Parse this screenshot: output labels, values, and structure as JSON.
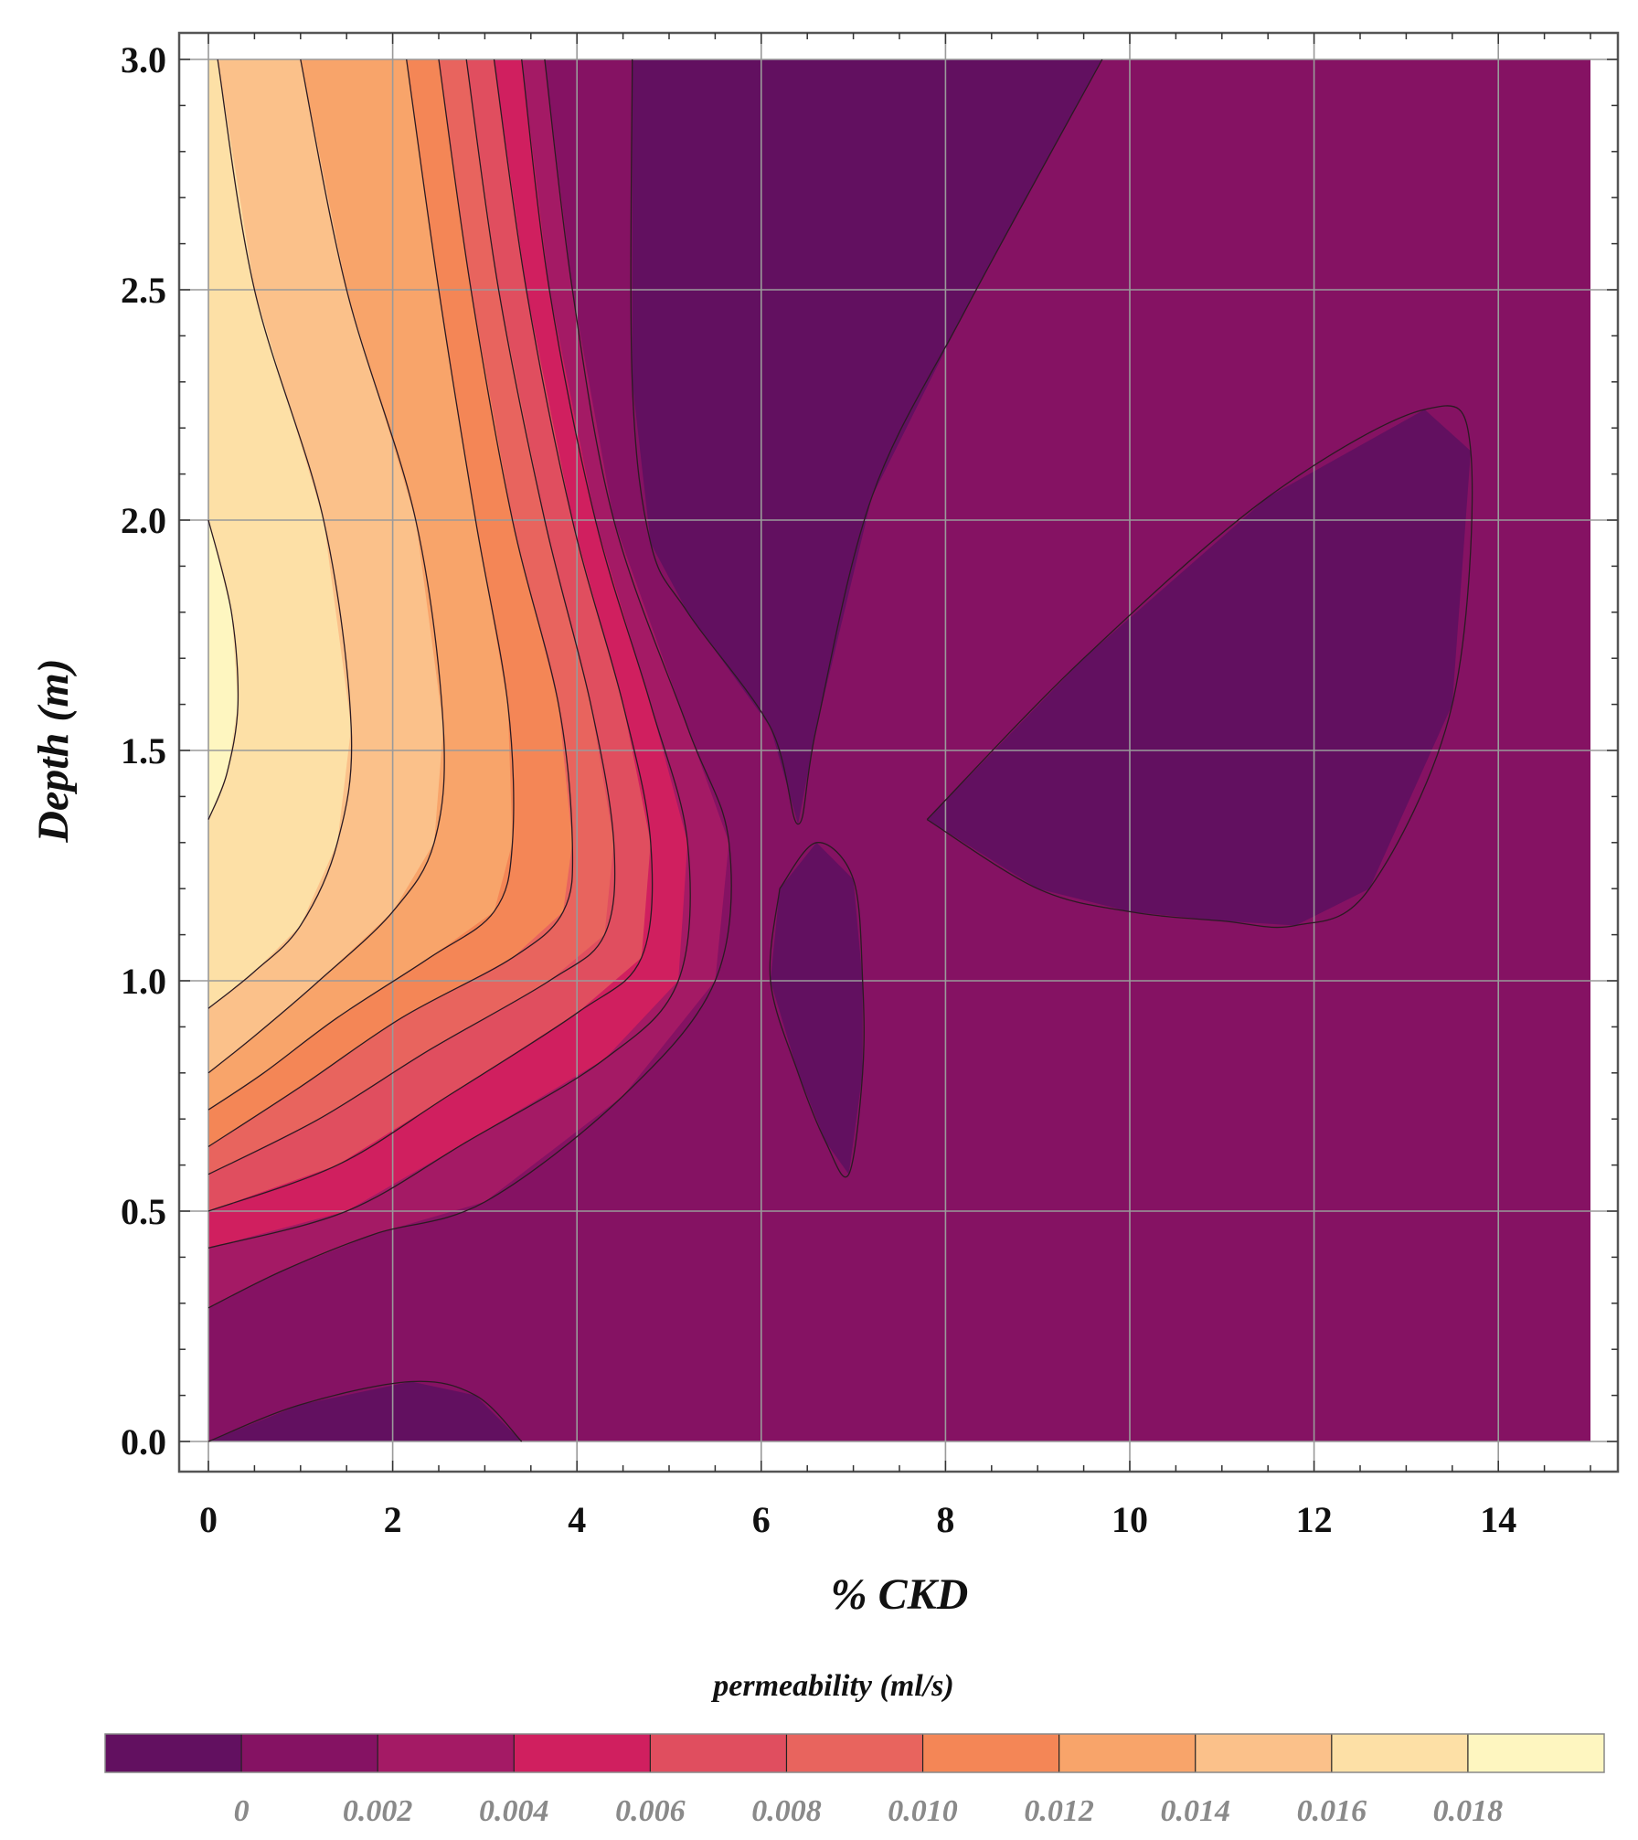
{
  "chart_data": {
    "type": "contour",
    "xlabel": "% CKD",
    "ylabel": "Depth (m)",
    "xlim": [
      0,
      15
    ],
    "ylim": [
      0,
      3
    ],
    "x_ticks": [
      "0",
      "2",
      "4",
      "6",
      "8",
      "10",
      "12",
      "14"
    ],
    "y_ticks": [
      "0.0",
      "0.5",
      "1.0",
      "1.5",
      "2.0",
      "2.5",
      "3.0"
    ],
    "grid": true,
    "colorbar": {
      "title": "permeability (ml/s)",
      "position": "bottom",
      "tick_labels": [
        "0",
        "0.002",
        "0.004",
        "0.006",
        "0.008",
        "0.010",
        "0.012",
        "0.014",
        "0.016",
        "0.018"
      ],
      "level_colors": [
        "#621060",
        "#851263",
        "#a41a65",
        "#d01f5f",
        "#e04e5f",
        "#e8645e",
        "#f48656",
        "#f8a46a",
        "#fbc18a",
        "#fde0a6",
        "#fef6c0"
      ]
    },
    "contour_lines": [
      {
        "level": "0",
        "points": [
          [
            4.6,
            3.0
          ],
          [
            4.6,
            2.3
          ],
          [
            4.8,
            1.95
          ],
          [
            5.2,
            1.8
          ],
          [
            6.1,
            1.55
          ],
          [
            6.4,
            1.34
          ],
          [
            6.6,
            1.55
          ],
          [
            7.2,
            2.05
          ],
          [
            8.2,
            2.45
          ],
          [
            9.7,
            3.0
          ]
        ]
      },
      {
        "level": "0",
        "points": [
          [
            6.2,
            1.2
          ],
          [
            6.6,
            1.3
          ],
          [
            7.0,
            1.22
          ],
          [
            7.1,
            1.0
          ],
          [
            7.1,
            0.8
          ],
          [
            6.95,
            0.58
          ],
          [
            6.7,
            0.65
          ],
          [
            6.4,
            0.8
          ],
          [
            6.1,
            1.0
          ],
          [
            6.2,
            1.2
          ]
        ]
      },
      {
        "level": "0",
        "points": [
          [
            7.8,
            1.35
          ],
          [
            9.5,
            1.7
          ],
          [
            11.5,
            2.05
          ],
          [
            13.2,
            2.24
          ],
          [
            13.7,
            2.15
          ],
          [
            13.5,
            1.6
          ],
          [
            12.6,
            1.2
          ],
          [
            11.8,
            1.12
          ],
          [
            11.0,
            1.13
          ],
          [
            10.0,
            1.15
          ],
          [
            9.0,
            1.2
          ],
          [
            7.8,
            1.35
          ]
        ]
      },
      {
        "level": "0",
        "points": [
          [
            0.0,
            0.0
          ],
          [
            1.0,
            0.08
          ],
          [
            2.2,
            0.13
          ],
          [
            2.9,
            0.1
          ],
          [
            3.4,
            0.0
          ]
        ]
      },
      {
        "level": "0.002",
        "points": [
          [
            3.65,
            3.0
          ],
          [
            3.95,
            2.5
          ],
          [
            4.4,
            2.0
          ],
          [
            5.2,
            1.55
          ],
          [
            5.65,
            1.3
          ],
          [
            5.5,
            1.0
          ],
          [
            4.5,
            0.75
          ],
          [
            3.0,
            0.52
          ],
          [
            1.8,
            0.45
          ],
          [
            0.8,
            0.37
          ],
          [
            0.0,
            0.29
          ]
        ]
      },
      {
        "level": "0.004",
        "points": [
          [
            3.4,
            3.0
          ],
          [
            3.7,
            2.5
          ],
          [
            4.2,
            2.0
          ],
          [
            4.8,
            1.6
          ],
          [
            5.2,
            1.3
          ],
          [
            5.1,
            1.0
          ],
          [
            4.3,
            0.83
          ],
          [
            2.8,
            0.65
          ],
          [
            1.5,
            0.5
          ],
          [
            0.0,
            0.42
          ]
        ]
      },
      {
        "level": "0.006",
        "points": [
          [
            3.1,
            3.0
          ],
          [
            3.45,
            2.5
          ],
          [
            3.95,
            2.0
          ],
          [
            4.5,
            1.6
          ],
          [
            4.8,
            1.3
          ],
          [
            4.7,
            1.05
          ],
          [
            4.0,
            0.93
          ],
          [
            2.6,
            0.75
          ],
          [
            1.4,
            0.6
          ],
          [
            0.0,
            0.5
          ]
        ]
      },
      {
        "level": "0.008",
        "points": [
          [
            2.8,
            3.0
          ],
          [
            3.15,
            2.5
          ],
          [
            3.65,
            2.0
          ],
          [
            4.15,
            1.6
          ],
          [
            4.4,
            1.3
          ],
          [
            4.3,
            1.1
          ],
          [
            3.7,
            1.0
          ],
          [
            2.4,
            0.85
          ],
          [
            1.2,
            0.7
          ],
          [
            0.0,
            0.58
          ]
        ]
      },
      {
        "level": "0.010",
        "points": [
          [
            2.5,
            3.0
          ],
          [
            2.85,
            2.5
          ],
          [
            3.3,
            2.0
          ],
          [
            3.8,
            1.6
          ],
          [
            3.95,
            1.3
          ],
          [
            3.85,
            1.15
          ],
          [
            3.3,
            1.05
          ],
          [
            2.1,
            0.92
          ],
          [
            1.0,
            0.77
          ],
          [
            0.0,
            0.64
          ]
        ]
      },
      {
        "level": "0.012",
        "points": [
          [
            2.15,
            3.0
          ],
          [
            2.5,
            2.5
          ],
          [
            2.9,
            2.0
          ],
          [
            3.25,
            1.6
          ],
          [
            3.3,
            1.3
          ],
          [
            3.1,
            1.15
          ],
          [
            2.4,
            1.05
          ],
          [
            1.4,
            0.92
          ],
          [
            0.6,
            0.8
          ],
          [
            0.0,
            0.72
          ]
        ]
      },
      {
        "level": "0.014",
        "points": [
          [
            1.0,
            3.0
          ],
          [
            1.5,
            2.5
          ],
          [
            2.25,
            2.0
          ],
          [
            2.55,
            1.55
          ],
          [
            2.45,
            1.3
          ],
          [
            2.0,
            1.15
          ],
          [
            1.2,
            1.0
          ],
          [
            0.5,
            0.88
          ],
          [
            0.0,
            0.8
          ]
        ]
      },
      {
        "level": "0.016",
        "points": [
          [
            0.1,
            3.0
          ],
          [
            0.5,
            2.5
          ],
          [
            1.25,
            2.0
          ],
          [
            1.55,
            1.55
          ],
          [
            1.4,
            1.3
          ],
          [
            1.0,
            1.12
          ],
          [
            0.5,
            1.02
          ],
          [
            0.0,
            0.94
          ]
        ]
      },
      {
        "level": "0.018",
        "points": [
          [
            0.0,
            2.0
          ],
          [
            0.25,
            1.8
          ],
          [
            0.32,
            1.6
          ],
          [
            0.2,
            1.45
          ],
          [
            0.0,
            1.35
          ]
        ]
      }
    ]
  }
}
